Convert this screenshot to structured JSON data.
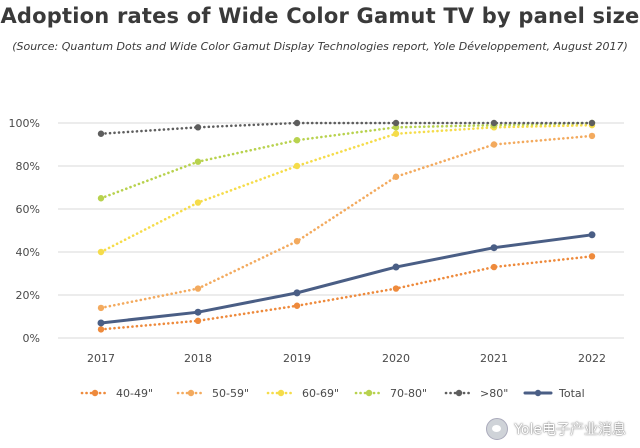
{
  "chart_data": {
    "type": "line",
    "title": "Adoption rates of Wide Color Gamut TV by panel size",
    "subtitle": "(Source: Quantum Dots and Wide Color Gamut Display Technologies report, Yole Développement, August 2017)",
    "x": [
      "2017",
      "2018",
      "2019",
      "2020",
      "2021",
      "2022"
    ],
    "yticks": [
      "0%",
      "20%",
      "40%",
      "60%",
      "80%",
      "100%"
    ],
    "ylim": [
      0,
      100
    ],
    "grid": "horizontal",
    "legend": "bottom",
    "series": [
      {
        "name": "40-49\"",
        "color": "#ee8a3c",
        "style": "dotted",
        "values": [
          4,
          8,
          15,
          23,
          33,
          38
        ]
      },
      {
        "name": "50-59\"",
        "color": "#f3aa5e",
        "style": "dotted",
        "values": [
          14,
          23,
          45,
          75,
          90,
          94
        ]
      },
      {
        "name": "60-69\"",
        "color": "#f5dc4a",
        "style": "dotted",
        "values": [
          40,
          63,
          80,
          95,
          98,
          99
        ]
      },
      {
        "name": "70-80\"",
        "color": "#b8d24e",
        "style": "dotted",
        "values": [
          65,
          82,
          92,
          98,
          99,
          100
        ]
      },
      {
        "name": ">80\"",
        "color": "#5e5e5e",
        "style": "dotted",
        "values": [
          95,
          98,
          100,
          100,
          100,
          100
        ]
      },
      {
        "name": "Total",
        "color": "#4a5e85",
        "style": "solid",
        "values": [
          7,
          12,
          21,
          33,
          42,
          48
        ]
      }
    ]
  },
  "watermark": {
    "text": "Yole电子产业消息"
  }
}
